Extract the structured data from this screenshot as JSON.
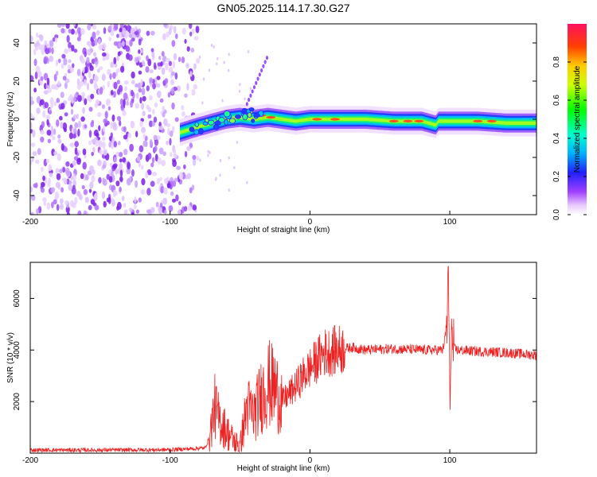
{
  "chart_data": [
    {
      "type": "heatmap",
      "title": "GN05.2025.114.17.30.G27",
      "xlabel": "Height of straight line (km)",
      "ylabel": "Frequency (Hz)",
      "xlim": [
        -200,
        162
      ],
      "ylim": [
        -50,
        50
      ],
      "xticks": [
        -200,
        -100,
        0,
        100
      ],
      "yticks": [
        -40,
        -20,
        0,
        20,
        40
      ],
      "noise_region_x": [
        -200,
        -80
      ],
      "signal_track": {
        "x": [
          -93,
          -80,
          -70,
          -60,
          -50,
          -40,
          -30,
          -20,
          -10,
          0,
          20,
          40,
          60,
          80,
          90,
          92,
          100,
          120,
          140,
          162
        ],
        "freq": [
          -7,
          -4,
          -2,
          0,
          1,
          0,
          1,
          0,
          -1,
          0,
          0,
          0,
          -1,
          -1,
          -3,
          -1,
          -1,
          -1,
          -2,
          -2
        ]
      },
      "colorbar": {
        "label": "Normalized spectral amplitude",
        "range": [
          0,
          1
        ],
        "ticks": [
          "0.0",
          "0.2",
          "0.4",
          "0.6",
          "0.8"
        ],
        "tick_values": [
          0,
          0.2,
          0.4,
          0.6,
          0.8
        ]
      }
    },
    {
      "type": "line",
      "xlabel": "Height of straight line (km)",
      "ylabel": "SNR (10 * v/v)",
      "xlim": [
        -200,
        162
      ],
      "ylim": [
        0,
        7400
      ],
      "xticks": [
        -200,
        -100,
        0,
        100
      ],
      "yticks": [
        2000,
        4000,
        6000
      ],
      "series": [
        {
          "name": "SNR",
          "color": "#ee2222",
          "x": [
            -200,
            -150,
            -100,
            -75,
            -72,
            -68,
            -65,
            -60,
            -55,
            -50,
            -45,
            -40,
            -35,
            -30,
            -25,
            -20,
            -15,
            -10,
            -5,
            0,
            5,
            10,
            20,
            30,
            40,
            60,
            80,
            95,
            98,
            99,
            100,
            101,
            102,
            105,
            120,
            140,
            162
          ],
          "y": [
            120,
            120,
            130,
            200,
            600,
            1800,
            1300,
            900,
            500,
            250,
            1800,
            1500,
            2200,
            2700,
            2500,
            2000,
            2300,
            2600,
            3000,
            3300,
            3600,
            3900,
            4000,
            4100,
            4000,
            4050,
            4000,
            4000,
            4900,
            7300,
            1600,
            4800,
            4100,
            4000,
            3950,
            3900,
            3800
          ]
        }
      ]
    }
  ]
}
